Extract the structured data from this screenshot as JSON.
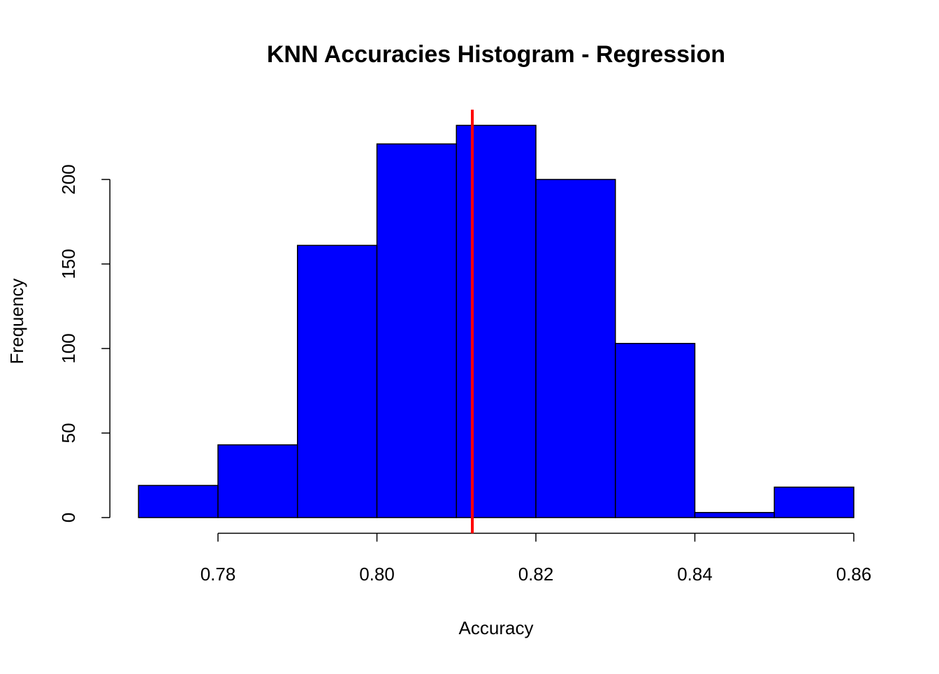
{
  "chart_data": {
    "type": "histogram",
    "title": "KNN Accuracies Histogram - Regression",
    "x_label": "Accuracy",
    "y_label": "Frequency",
    "bins": [
      0.77,
      0.78,
      0.79,
      0.8,
      0.81,
      0.82,
      0.83,
      0.84,
      0.85,
      0.86
    ],
    "values": [
      19,
      43,
      161,
      221,
      232,
      200,
      103,
      3,
      18
    ],
    "color": "#0000ff",
    "edge_color": "#000000",
    "xlim": [
      0.7664,
      0.8636
    ],
    "ylim": [
      -9.28,
      241.28
    ],
    "xticks": [
      0.78,
      {
        "value": 0.8,
        "label": "0.80"
      },
      0.82,
      0.84,
      0.86
    ],
    "yticks": [
      0,
      50,
      100,
      150,
      200
    ],
    "vline": {
      "value": 0.812,
      "color": "#ff0000"
    }
  }
}
